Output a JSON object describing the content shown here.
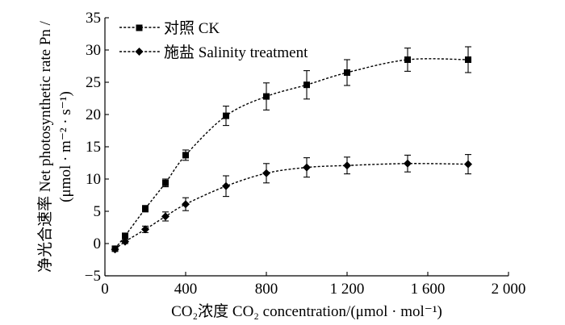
{
  "chart_data": {
    "type": "line",
    "x": [
      50,
      100,
      200,
      300,
      400,
      600,
      800,
      1000,
      1200,
      1500,
      1800
    ],
    "series": [
      {
        "name": "对照 CK",
        "marker": "square",
        "values": [
          -0.8,
          1.2,
          5.4,
          9.4,
          13.7,
          19.8,
          22.8,
          24.6,
          26.5,
          28.5,
          28.5
        ],
        "errors": [
          0.3,
          0.4,
          0.5,
          0.6,
          0.8,
          1.5,
          2.1,
          2.2,
          2.0,
          1.8,
          2.0
        ]
      },
      {
        "name": "施盐 Salinity treatment",
        "marker": "diamond",
        "values": [
          -0.9,
          0.3,
          2.2,
          4.2,
          6.1,
          8.9,
          10.9,
          11.8,
          12.1,
          12.4,
          12.3
        ],
        "errors": [
          0.2,
          0.3,
          0.5,
          0.7,
          1.0,
          1.6,
          1.5,
          1.5,
          1.3,
          1.3,
          1.5
        ]
      }
    ],
    "xlim": [
      0,
      2000
    ],
    "ylim": [
      -5,
      35
    ],
    "x_ticks": [
      0,
      400,
      800,
      1200,
      1600,
      2000
    ],
    "x_tick_labels": [
      "0",
      "400",
      "800",
      "1 200",
      "1 600",
      "2 000"
    ],
    "y_ticks": [
      -5,
      0,
      5,
      10,
      15,
      20,
      25,
      30,
      35
    ],
    "y_tick_labels": [
      "−5",
      "0",
      "5",
      "10",
      "15",
      "20",
      "25",
      "30",
      "35"
    ],
    "xlabel": "CO₂浓度 CO₂ concentration/(μmol · mol⁻¹)",
    "ylabel_line1": "净光合速率 Net photosynthetic rate Pn /",
    "ylabel_line2": "(μmol · m⁻² · s⁻¹)",
    "legend_position": "top-left"
  }
}
